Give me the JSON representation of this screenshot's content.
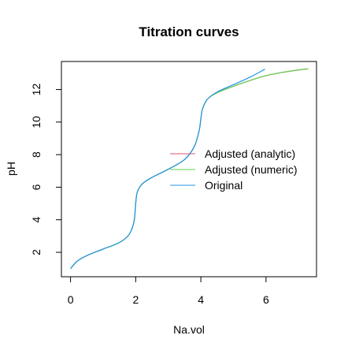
{
  "chart_data": {
    "type": "line",
    "title": "Titration curves",
    "xlabel": "Na.vol",
    "ylabel": "pH",
    "xlim": [
      -0.28,
      7.55
    ],
    "ylim": [
      0.5,
      13.72
    ],
    "x_ticks": [
      0,
      2,
      4,
      6
    ],
    "y_ticks": [
      2,
      4,
      6,
      8,
      10,
      12
    ],
    "grid": false,
    "legend_position": "right",
    "series": [
      {
        "name": "Adjusted (analytic)",
        "color": "#DF536B",
        "x": [
          0,
          0.2,
          0.5,
          1.0,
          1.5,
          1.8,
          1.95,
          2.0,
          2.05,
          2.2,
          2.5,
          3.0,
          3.5,
          3.8,
          3.95,
          4.0,
          4.05,
          4.2,
          4.5,
          5.0,
          5.5,
          6.0,
          6.5,
          7.0,
          7.3
        ],
        "y": [
          1.0,
          1.45,
          1.8,
          2.2,
          2.6,
          3.1,
          3.9,
          5.0,
          5.7,
          6.2,
          6.6,
          7.1,
          7.7,
          8.5,
          9.5,
          10.2,
          10.8,
          11.4,
          11.8,
          12.2,
          12.55,
          12.85,
          13.05,
          13.2,
          13.27
        ]
      },
      {
        "name": "Adjusted (numeric)",
        "color": "#61D04F",
        "x": [
          0,
          0.2,
          0.5,
          1.0,
          1.5,
          1.8,
          1.95,
          2.0,
          2.05,
          2.2,
          2.5,
          3.0,
          3.5,
          3.8,
          3.95,
          4.0,
          4.05,
          4.2,
          4.5,
          5.0,
          5.5,
          6.0,
          6.5,
          7.0,
          7.3
        ],
        "y": [
          1.0,
          1.45,
          1.8,
          2.2,
          2.6,
          3.1,
          3.9,
          5.0,
          5.7,
          6.2,
          6.6,
          7.1,
          7.7,
          8.5,
          9.5,
          10.2,
          10.8,
          11.4,
          11.8,
          12.2,
          12.55,
          12.85,
          13.05,
          13.2,
          13.27
        ]
      },
      {
        "name": "Original",
        "color": "#2297E6",
        "x": [
          0,
          0.2,
          0.5,
          1.0,
          1.5,
          1.8,
          1.95,
          2.0,
          2.05,
          2.2,
          2.5,
          3.0,
          3.5,
          3.8,
          3.95,
          4.0,
          4.05,
          4.2,
          4.5,
          5.0,
          5.5,
          5.97
        ],
        "y": [
          1.0,
          1.45,
          1.8,
          2.2,
          2.6,
          3.1,
          3.9,
          5.0,
          5.7,
          6.2,
          6.6,
          7.1,
          7.7,
          8.5,
          9.5,
          10.2,
          10.8,
          11.4,
          11.85,
          12.3,
          12.75,
          13.25
        ]
      }
    ]
  }
}
